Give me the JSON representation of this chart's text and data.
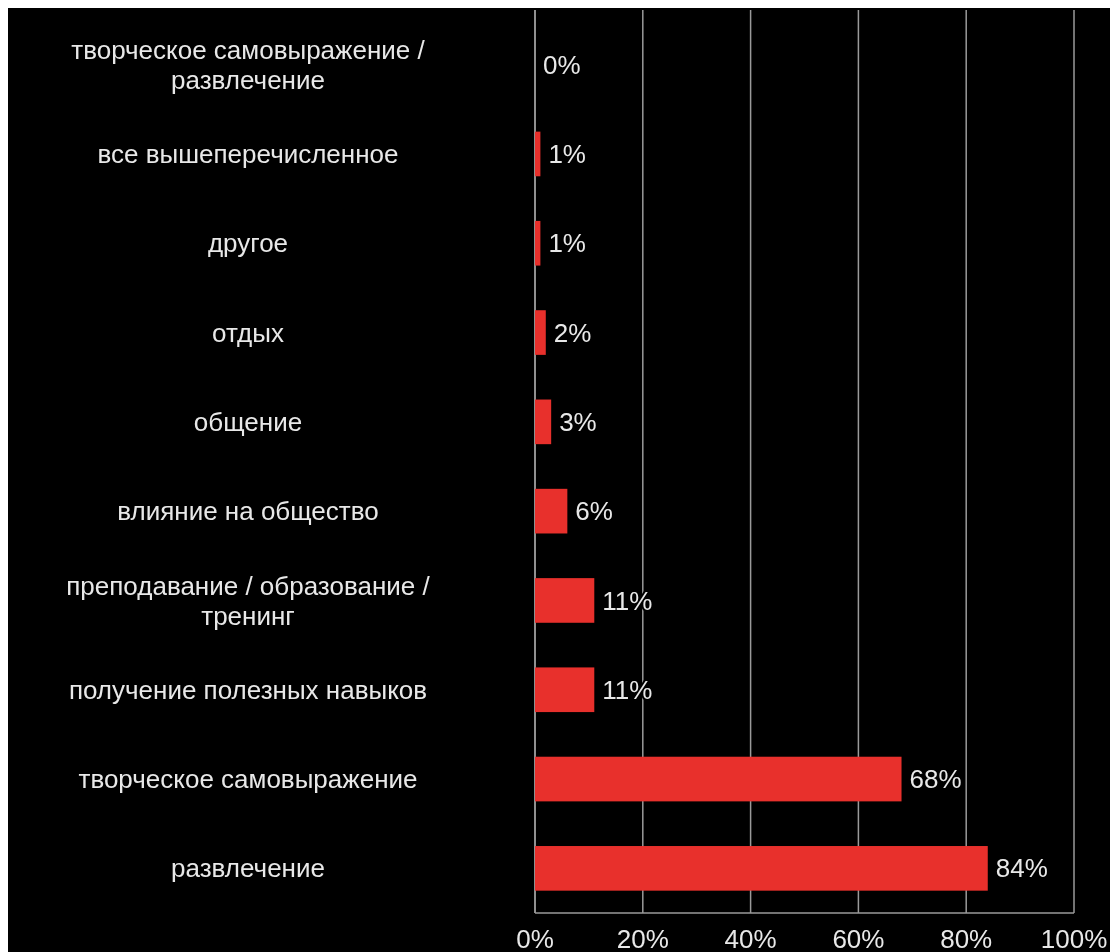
{
  "chart_data": {
    "type": "bar",
    "orientation": "horizontal",
    "categories": [
      "творческое самовыражение / развлечение",
      "все вышеперечисленное",
      "другое",
      "отдых",
      "общение",
      "влияние на общество",
      "преподавание / образование / тренинг",
      "получение полезных навыков",
      "творческое самовыражение",
      "развлечение"
    ],
    "values": [
      0,
      1,
      1,
      2,
      3,
      6,
      11,
      11,
      68,
      84
    ],
    "value_labels": [
      "0%",
      "1%",
      "1%",
      "2%",
      "3%",
      "6%",
      "11%",
      "11%",
      "68%",
      "84%"
    ],
    "color": "#e8302c",
    "xlim": [
      0,
      100
    ],
    "xticks": [
      {
        "value": 0,
        "label": "0%"
      },
      {
        "value": 20,
        "label": "20%"
      },
      {
        "value": 40,
        "label": "40%"
      },
      {
        "value": 60,
        "label": "60%"
      },
      {
        "value": 80,
        "label": "80%"
      },
      {
        "value": 100,
        "label": "100%"
      }
    ],
    "grid": "x"
  }
}
